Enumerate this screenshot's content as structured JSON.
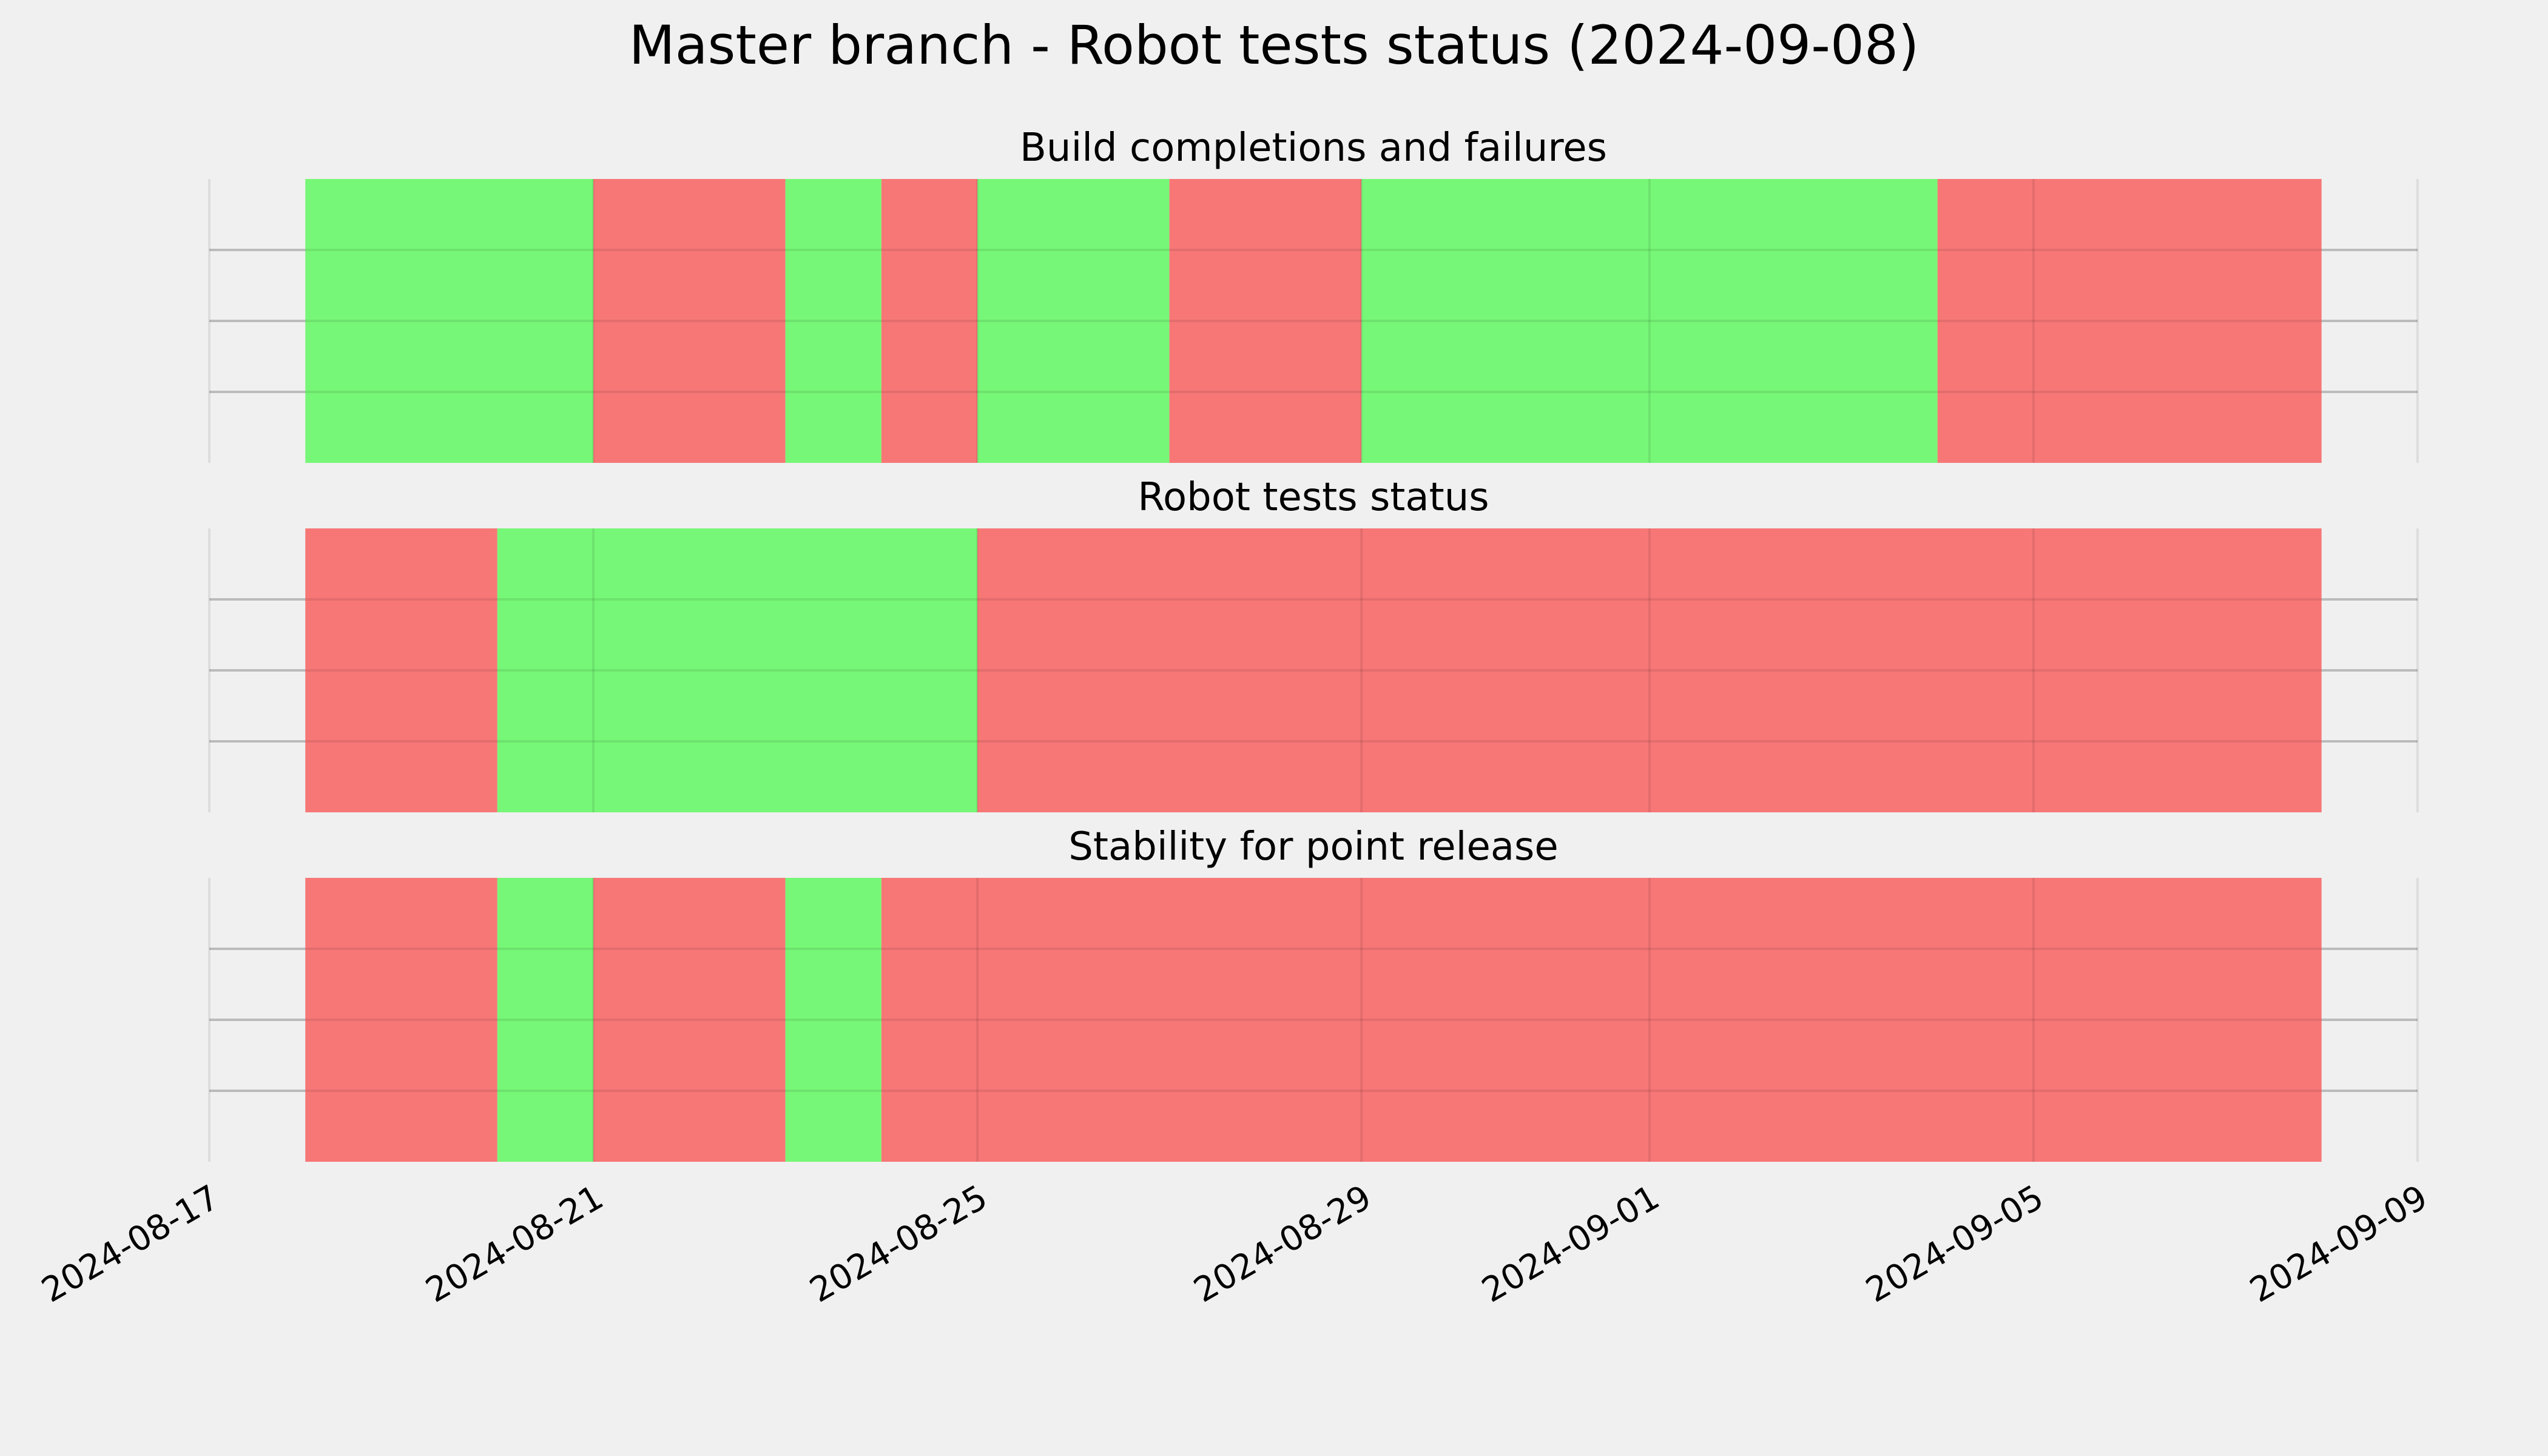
{
  "chart_data": {
    "type": "timeline",
    "title": "Master branch - Robot tests status (2024-09-08)",
    "colors": {
      "pass": "#77f777",
      "fail": "#f77777",
      "background": "#f0f0f0",
      "grid": "#cbcbcb"
    },
    "x_ticks": [
      "2024-08-17",
      "2024-08-21",
      "2024-08-25",
      "2024-08-29",
      "2024-09-01",
      "2024-09-05",
      "2024-09-09"
    ],
    "xlim": [
      "2024-08-17",
      "2024-09-09"
    ],
    "grid": true,
    "panels": [
      {
        "title": "Build completions and failures",
        "segments": [
          {
            "start": "2024-08-18",
            "end": "2024-08-21",
            "status": "pass"
          },
          {
            "start": "2024-08-21",
            "end": "2024-08-23",
            "status": "fail"
          },
          {
            "start": "2024-08-23",
            "end": "2024-08-24",
            "status": "pass"
          },
          {
            "start": "2024-08-24",
            "end": "2024-08-25",
            "status": "fail"
          },
          {
            "start": "2024-08-25",
            "end": "2024-08-27",
            "status": "pass"
          },
          {
            "start": "2024-08-27",
            "end": "2024-08-29",
            "status": "fail"
          },
          {
            "start": "2024-08-29",
            "end": "2024-09-04",
            "status": "pass"
          },
          {
            "start": "2024-09-04",
            "end": "2024-09-08",
            "status": "fail"
          }
        ]
      },
      {
        "title": "Robot tests status",
        "segments": [
          {
            "start": "2024-08-18",
            "end": "2024-08-20",
            "status": "fail"
          },
          {
            "start": "2024-08-20",
            "end": "2024-08-25",
            "status": "pass"
          },
          {
            "start": "2024-08-25",
            "end": "2024-09-08",
            "status": "fail"
          }
        ]
      },
      {
        "title": "Stability for point release",
        "segments": [
          {
            "start": "2024-08-18",
            "end": "2024-08-20",
            "status": "fail"
          },
          {
            "start": "2024-08-20",
            "end": "2024-08-21",
            "status": "pass"
          },
          {
            "start": "2024-08-21",
            "end": "2024-08-23",
            "status": "fail"
          },
          {
            "start": "2024-08-23",
            "end": "2024-08-24",
            "status": "pass"
          },
          {
            "start": "2024-08-24",
            "end": "2024-09-08",
            "status": "fail"
          }
        ]
      }
    ]
  }
}
